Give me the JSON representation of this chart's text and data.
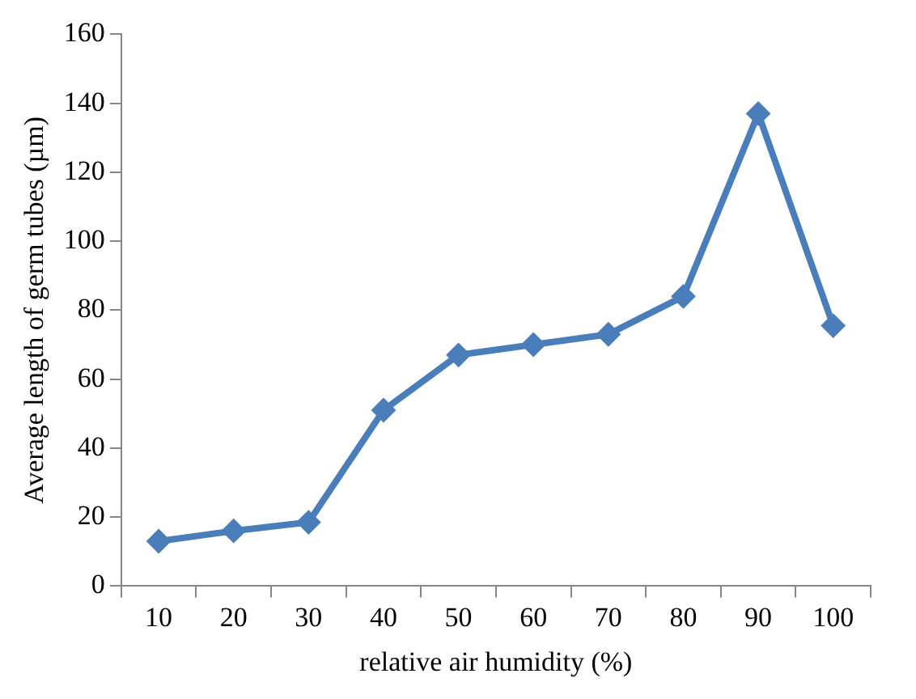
{
  "chart_data": {
    "type": "line",
    "xlabel": "relative air humidity (%)",
    "ylabel": "Average length of germ tubes (µm)",
    "categories": [
      "10",
      "20",
      "30",
      "40",
      "50",
      "60",
      "70",
      "80",
      "90",
      "100"
    ],
    "series": [
      {
        "color": "#4a7ebb",
        "values": [
          13,
          16,
          18.5,
          51,
          67,
          70,
          73,
          84,
          137,
          75.5
        ]
      }
    ],
    "ylim": [
      0,
      160
    ],
    "yticks": [
      0,
      20,
      40,
      60,
      80,
      100,
      120,
      140,
      160
    ],
    "grid": false,
    "legend": false,
    "marker": "diamond",
    "line_style": "solid"
  }
}
